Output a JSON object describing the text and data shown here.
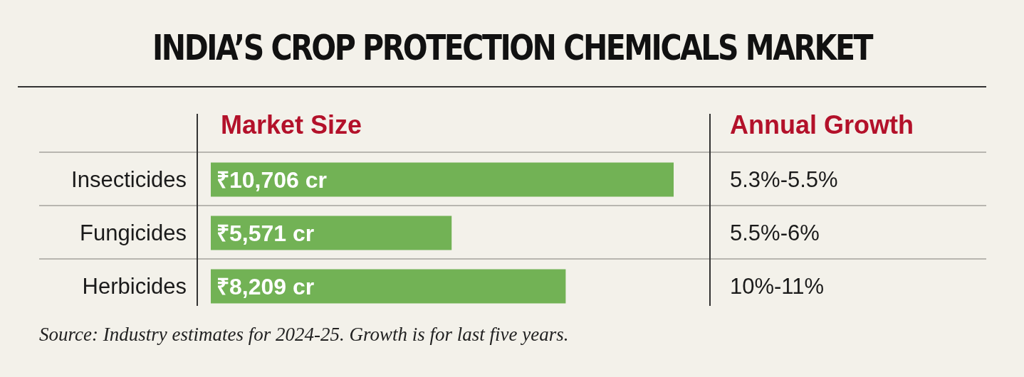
{
  "chart_data": {
    "type": "bar",
    "orientation": "horizontal",
    "title": "INDIA’S CROP PROTECTION CHEMICALS MARKET",
    "xlabel": "Market Size",
    "categories": [
      "Insecticides",
      "Fungicides",
      "Herbicides"
    ],
    "values": [
      10706,
      5571,
      8209
    ],
    "value_labels": [
      "₹10,706 cr",
      "₹5,571 cr",
      "₹8,209 cr"
    ],
    "color": "#72b255",
    "grid": "y",
    "annotations": [
      "Annual Growth",
      "5.3%-5.5%",
      "5.5%-6%",
      "10%-11%",
      "Source: Industry estimates for 2024-25. Growth is for last five years."
    ]
  }
}
